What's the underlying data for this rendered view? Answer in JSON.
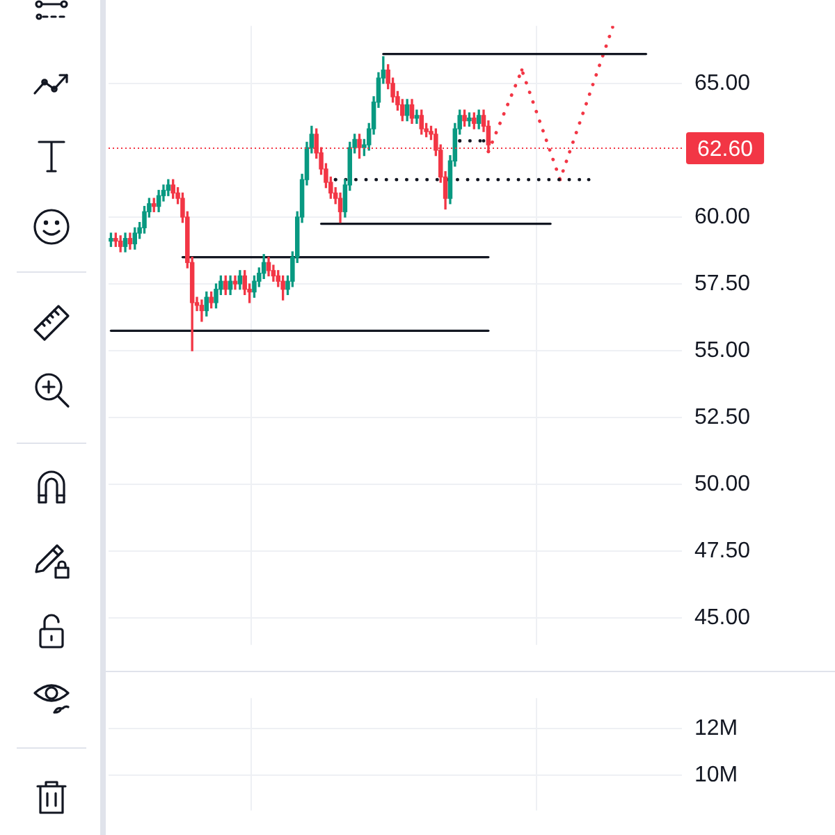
{
  "chart_data": [
    {
      "type": "candlestick",
      "categories": [
        null,
        null,
        null,
        null,
        null,
        null,
        null,
        null,
        null,
        null,
        null,
        null,
        null,
        null,
        null,
        null,
        null,
        null,
        null,
        null,
        null,
        null,
        null,
        null,
        null,
        null,
        null,
        null,
        null,
        null,
        null,
        null,
        null,
        null,
        null,
        null,
        null,
        null,
        null,
        null,
        null,
        null,
        null,
        null,
        null,
        null,
        null,
        null,
        null,
        null,
        null,
        null,
        null,
        null,
        null,
        null,
        null,
        null,
        null,
        null,
        null,
        null,
        null,
        null,
        null,
        null,
        null,
        null,
        null,
        null,
        null,
        null,
        null,
        null,
        null,
        null,
        null,
        null,
        null,
        null,
        null,
        null,
        null,
        null,
        null,
        null,
        null,
        null,
        null,
        null,
        null,
        null,
        null,
        null,
        null,
        null,
        null,
        null,
        null,
        null,
        null,
        null,
        null,
        null,
        null,
        null,
        null,
        null,
        null,
        null,
        null,
        null,
        null,
        null,
        null,
        null,
        null,
        null,
        null,
        null
      ],
      "ohlc": [
        [
          59.1,
          59.4,
          58.9,
          59.2
        ],
        [
          59.2,
          59.4,
          58.9,
          59.1
        ],
        [
          59.1,
          59.3,
          58.7,
          58.9
        ],
        [
          58.9,
          59.4,
          58.7,
          59.2
        ],
        [
          59.2,
          59.4,
          58.8,
          59.0
        ],
        [
          59.0,
          59.6,
          58.8,
          59.4
        ],
        [
          59.4,
          59.8,
          59.2,
          59.6
        ],
        [
          59.6,
          60.4,
          59.4,
          60.2
        ],
        [
          60.2,
          60.7,
          60.0,
          60.5
        ],
        [
          60.5,
          60.7,
          60.2,
          60.4
        ],
        [
          60.4,
          61.0,
          60.2,
          60.8
        ],
        [
          60.8,
          61.2,
          60.6,
          61.0
        ],
        [
          61.0,
          61.4,
          60.8,
          61.2
        ],
        [
          61.2,
          61.4,
          60.7,
          60.9
        ],
        [
          60.9,
          61.1,
          60.5,
          60.7
        ],
        [
          60.7,
          60.9,
          59.8,
          60.0
        ],
        [
          60.0,
          60.2,
          58.1,
          58.3
        ],
        [
          58.3,
          58.5,
          55.0,
          56.8
        ],
        [
          56.8,
          57.0,
          56.5,
          56.7
        ],
        [
          56.7,
          56.9,
          56.1,
          56.5
        ],
        [
          56.5,
          57.2,
          56.3,
          57.0
        ],
        [
          57.0,
          57.2,
          56.6,
          56.8
        ],
        [
          56.8,
          57.5,
          56.6,
          57.3
        ],
        [
          57.3,
          57.8,
          57.1,
          57.6
        ],
        [
          57.6,
          57.8,
          57.1,
          57.3
        ],
        [
          57.3,
          57.8,
          57.1,
          57.6
        ],
        [
          57.6,
          57.8,
          57.3,
          57.5
        ],
        [
          57.5,
          58.0,
          57.3,
          57.8
        ],
        [
          57.8,
          58.0,
          57.1,
          57.3
        ],
        [
          57.3,
          57.5,
          56.8,
          57.2
        ],
        [
          57.2,
          57.8,
          57.0,
          57.6
        ],
        [
          57.6,
          58.1,
          57.4,
          57.9
        ],
        [
          57.9,
          58.6,
          57.7,
          58.3
        ],
        [
          58.3,
          58.5,
          57.8,
          58.0
        ],
        [
          58.0,
          58.2,
          57.6,
          57.8
        ],
        [
          57.8,
          58.0,
          57.4,
          57.6
        ],
        [
          57.6,
          57.8,
          56.9,
          57.3
        ],
        [
          57.3,
          57.8,
          57.1,
          57.6
        ],
        [
          57.6,
          58.7,
          57.4,
          58.5
        ],
        [
          58.5,
          60.2,
          58.3,
          60.0
        ],
        [
          60.0,
          61.6,
          59.8,
          61.4
        ],
        [
          61.4,
          62.8,
          61.2,
          62.6
        ],
        [
          62.6,
          63.4,
          62.4,
          63.1
        ],
        [
          63.1,
          63.3,
          62.2,
          62.4
        ],
        [
          62.4,
          62.6,
          61.6,
          61.8
        ],
        [
          61.8,
          62.0,
          61.1,
          61.3
        ],
        [
          61.3,
          61.5,
          60.7,
          60.9
        ],
        [
          60.9,
          61.1,
          60.5,
          60.7
        ],
        [
          60.7,
          60.9,
          59.8,
          60.2
        ],
        [
          60.2,
          61.4,
          60.0,
          61.2
        ],
        [
          61.2,
          62.8,
          61.0,
          62.6
        ],
        [
          62.6,
          63.1,
          62.4,
          62.9
        ],
        [
          62.9,
          63.1,
          62.2,
          62.6
        ],
        [
          62.6,
          62.9,
          62.3,
          62.7
        ],
        [
          62.7,
          63.5,
          62.5,
          63.3
        ],
        [
          63.3,
          64.5,
          63.1,
          64.3
        ],
        [
          64.3,
          65.4,
          64.1,
          65.2
        ],
        [
          65.2,
          66.0,
          65.0,
          65.5
        ],
        [
          65.5,
          65.7,
          64.8,
          65.0
        ],
        [
          65.0,
          65.2,
          64.3,
          64.5
        ],
        [
          64.5,
          64.7,
          64.0,
          64.2
        ],
        [
          64.2,
          64.4,
          63.6,
          63.8
        ],
        [
          63.8,
          64.4,
          63.6,
          64.2
        ],
        [
          64.2,
          64.4,
          63.5,
          63.7
        ],
        [
          63.7,
          64.0,
          63.5,
          63.8
        ],
        [
          63.8,
          64.0,
          63.1,
          63.3
        ],
        [
          63.3,
          63.5,
          63.0,
          63.2
        ],
        [
          63.2,
          63.4,
          62.9,
          63.1
        ],
        [
          63.1,
          63.3,
          62.3,
          62.5
        ],
        [
          62.5,
          62.7,
          61.3,
          61.5
        ],
        [
          61.5,
          61.7,
          60.3,
          60.7
        ],
        [
          60.7,
          62.3,
          60.5,
          62.1
        ],
        [
          62.1,
          63.5,
          61.9,
          63.3
        ],
        [
          63.3,
          64.0,
          63.1,
          63.8
        ],
        [
          63.8,
          64.0,
          63.4,
          63.6
        ],
        [
          63.6,
          63.9,
          63.4,
          63.7
        ],
        [
          63.7,
          63.9,
          63.3,
          63.5
        ],
        [
          63.5,
          64.0,
          63.3,
          63.8
        ],
        [
          63.8,
          64.0,
          63.2,
          63.4
        ],
        [
          63.4,
          63.6,
          62.5,
          62.7
        ],
        null,
        null,
        null,
        null,
        null,
        null,
        null,
        null,
        null,
        null,
        null,
        null,
        null,
        null,
        null,
        null,
        null,
        null,
        null,
        null,
        null,
        null,
        null,
        null,
        null,
        null,
        null,
        null,
        null,
        null,
        null,
        null,
        null,
        null,
        null,
        null,
        null,
        null,
        null,
        null
      ],
      "series": [
        {
          "type": "line",
          "color": "#131722",
          "line_style": "solid",
          "values": [
            null,
            null,
            null,
            null,
            null,
            null,
            null,
            null,
            null,
            null,
            null,
            null,
            null,
            null,
            null,
            null,
            null,
            null,
            null,
            null,
            null,
            null,
            null,
            null,
            null,
            null,
            null,
            null,
            null,
            null,
            null,
            null,
            null,
            null,
            null,
            null,
            null,
            null,
            null,
            null,
            null,
            null,
            null,
            null,
            null,
            null,
            null,
            null,
            null,
            null,
            null,
            null,
            null,
            null,
            null,
            null,
            null,
            66.1,
            null,
            null,
            null,
            null,
            null,
            null,
            null,
            null,
            null,
            null,
            null,
            null,
            null,
            null,
            null,
            null,
            null,
            null,
            null,
            null,
            null,
            null,
            null,
            null,
            null,
            null,
            null,
            null,
            null,
            null,
            null,
            null,
            null,
            null,
            null,
            null,
            null,
            null,
            null,
            null,
            null,
            null,
            null,
            null,
            null,
            null,
            null,
            null,
            null,
            null,
            null,
            null,
            null,
            null,
            66.1,
            null,
            null,
            null,
            null,
            null,
            null,
            null
          ]
        },
        {
          "type": "line",
          "color": "#131722",
          "line_style": "solid",
          "values": [
            null,
            null,
            null,
            null,
            null,
            null,
            null,
            null,
            null,
            null,
            null,
            null,
            null,
            null,
            null,
            null,
            null,
            null,
            null,
            null,
            null,
            null,
            null,
            null,
            null,
            null,
            null,
            null,
            null,
            null,
            null,
            null,
            null,
            null,
            null,
            null,
            null,
            null,
            null,
            null,
            null,
            null,
            null,
            null,
            59.75,
            null,
            null,
            null,
            null,
            null,
            null,
            null,
            null,
            null,
            null,
            null,
            null,
            null,
            null,
            null,
            null,
            null,
            null,
            null,
            null,
            null,
            null,
            null,
            null,
            null,
            null,
            null,
            null,
            null,
            null,
            null,
            null,
            null,
            null,
            null,
            null,
            null,
            null,
            null,
            null,
            null,
            null,
            null,
            null,
            null,
            null,
            null,
            59.75,
            null,
            null,
            null,
            null,
            null,
            null,
            null,
            null,
            null,
            null,
            null,
            null,
            null,
            null,
            null,
            null,
            null,
            null,
            null,
            null,
            null,
            null,
            null,
            null,
            null,
            null,
            null
          ]
        },
        {
          "type": "line",
          "color": "#131722",
          "line_style": "solid",
          "values": [
            null,
            null,
            null,
            null,
            null,
            null,
            null,
            null,
            null,
            null,
            null,
            null,
            null,
            null,
            null,
            58.5,
            null,
            null,
            null,
            null,
            null,
            null,
            null,
            null,
            null,
            null,
            null,
            null,
            null,
            null,
            null,
            null,
            null,
            null,
            null,
            null,
            null,
            null,
            null,
            null,
            null,
            null,
            null,
            null,
            null,
            null,
            null,
            null,
            null,
            null,
            null,
            null,
            null,
            null,
            null,
            null,
            null,
            null,
            null,
            null,
            null,
            null,
            null,
            null,
            null,
            null,
            null,
            null,
            null,
            null,
            null,
            null,
            null,
            null,
            null,
            null,
            null,
            null,
            null,
            58.5,
            null,
            null,
            null,
            null,
            null,
            null,
            null,
            null,
            null,
            null,
            null,
            null,
            null,
            null,
            null,
            null,
            null,
            null,
            null,
            null,
            null,
            null,
            null,
            null,
            null,
            null,
            null,
            null,
            null,
            null,
            null,
            null,
            null,
            null,
            null,
            null,
            null,
            null,
            null,
            null
          ]
        },
        {
          "type": "line",
          "color": "#131722",
          "line_style": "solid",
          "values": [
            55.75,
            null,
            null,
            null,
            null,
            null,
            null,
            null,
            null,
            null,
            null,
            null,
            null,
            null,
            null,
            null,
            null,
            null,
            null,
            null,
            null,
            null,
            null,
            null,
            null,
            null,
            null,
            null,
            null,
            null,
            null,
            null,
            null,
            null,
            null,
            null,
            null,
            null,
            null,
            null,
            null,
            null,
            null,
            null,
            null,
            null,
            null,
            null,
            null,
            null,
            null,
            null,
            null,
            null,
            null,
            null,
            null,
            null,
            null,
            null,
            null,
            null,
            null,
            null,
            null,
            null,
            null,
            null,
            null,
            null,
            null,
            null,
            null,
            null,
            null,
            null,
            null,
            null,
            null,
            55.75,
            null,
            null,
            null,
            null,
            null,
            null,
            null,
            null,
            null,
            null,
            null,
            null,
            null,
            null,
            null,
            null,
            null,
            null,
            null,
            null,
            null,
            null,
            null,
            null,
            null,
            null,
            null,
            null,
            null,
            null,
            null,
            null,
            null,
            null,
            null,
            null,
            null,
            null,
            null,
            null
          ]
        },
        {
          "type": "line",
          "color": "#131722",
          "line_style": "dotted",
          "values": [
            null,
            null,
            null,
            null,
            null,
            null,
            null,
            null,
            null,
            null,
            null,
            null,
            null,
            null,
            null,
            null,
            null,
            null,
            null,
            null,
            null,
            null,
            null,
            null,
            null,
            null,
            null,
            null,
            null,
            null,
            null,
            null,
            null,
            null,
            null,
            null,
            null,
            null,
            null,
            null,
            null,
            null,
            null,
            null,
            null,
            null,
            null,
            61.4,
            null,
            null,
            null,
            null,
            null,
            null,
            null,
            null,
            null,
            null,
            null,
            null,
            null,
            null,
            null,
            null,
            null,
            null,
            null,
            null,
            null,
            null,
            null,
            null,
            null,
            null,
            null,
            null,
            null,
            null,
            null,
            null,
            null,
            null,
            null,
            null,
            null,
            null,
            null,
            null,
            null,
            null,
            null,
            null,
            null,
            null,
            null,
            null,
            null,
            null,
            null,
            null,
            61.4,
            null,
            null,
            null,
            null,
            null,
            null,
            null,
            null,
            null,
            null,
            null,
            null,
            null,
            null,
            null,
            null,
            null,
            null,
            null
          ]
        },
        {
          "type": "line",
          "color": "#131722",
          "line_style": "dotted",
          "values": [
            null,
            null,
            null,
            null,
            null,
            null,
            null,
            null,
            null,
            null,
            null,
            null,
            null,
            null,
            null,
            null,
            null,
            null,
            null,
            null,
            null,
            null,
            null,
            null,
            null,
            null,
            null,
            null,
            null,
            null,
            null,
            null,
            null,
            null,
            null,
            null,
            null,
            null,
            null,
            null,
            null,
            null,
            null,
            null,
            null,
            null,
            null,
            null,
            null,
            null,
            null,
            null,
            null,
            null,
            null,
            null,
            null,
            null,
            null,
            null,
            null,
            null,
            null,
            null,
            null,
            null,
            null,
            null,
            null,
            null,
            null,
            null,
            null,
            62.85,
            null,
            null,
            null,
            null,
            62.85,
            null,
            null,
            null,
            null,
            null,
            null,
            null,
            null,
            null,
            null,
            null,
            null,
            null,
            null,
            null,
            null,
            null,
            null,
            null,
            null,
            null,
            null,
            null,
            null,
            null,
            null,
            null,
            null,
            null,
            null,
            null,
            null,
            null,
            null,
            null,
            null,
            null,
            null,
            null,
            null,
            null
          ]
        },
        {
          "type": "line",
          "color": "#f23645",
          "line_style": "dotted",
          "values": [
            null,
            null,
            null,
            null,
            null,
            null,
            null,
            null,
            null,
            null,
            null,
            null,
            null,
            null,
            null,
            null,
            null,
            null,
            null,
            null,
            null,
            null,
            null,
            null,
            null,
            null,
            null,
            null,
            null,
            null,
            null,
            null,
            null,
            null,
            null,
            null,
            null,
            null,
            null,
            null,
            null,
            null,
            null,
            null,
            null,
            null,
            null,
            null,
            null,
            null,
            null,
            null,
            null,
            null,
            null,
            null,
            null,
            null,
            null,
            null,
            null,
            null,
            null,
            null,
            null,
            null,
            null,
            null,
            null,
            null,
            null,
            null,
            null,
            null,
            null,
            null,
            null,
            null,
            null,
            62.45,
            null,
            null,
            null,
            null,
            null,
            null,
            65.5,
            null,
            null,
            null,
            null,
            null,
            null,
            null,
            61.4,
            null,
            null,
            null,
            null,
            null,
            null,
            null,
            null,
            null,
            null,
            67.1,
            null,
            null,
            null,
            null,
            null,
            null,
            null,
            null,
            null,
            null,
            null,
            null,
            null,
            null
          ]
        }
      ],
      "ref_lines": [
        {
          "axis": "y",
          "value": 62.6,
          "label": "62.60",
          "color": "#f23645",
          "line_style": "dotted"
        }
      ],
      "ylim": [
        44,
        67.15
      ],
      "yticks": [
        {
          "value": 45,
          "label": "45.00"
        },
        {
          "value": 47.5,
          "label": "47.50"
        },
        {
          "value": 50,
          "label": "50.00"
        },
        {
          "value": 52.5,
          "label": "52.50"
        },
        {
          "value": 55,
          "label": "55.00"
        },
        {
          "value": 57.5,
          "label": "57.50"
        },
        {
          "value": 60,
          "label": "60.00"
        },
        {
          "value": 65,
          "label": "65.00"
        }
      ],
      "grid": true
    },
    {
      "type": "bar",
      "categories": [
        null
      ],
      "values": [
        null
      ],
      "ylim": [
        8460000,
        13330000
      ],
      "yticks": [
        {
          "value": 10000000,
          "label": "10M"
        },
        {
          "value": 12000000,
          "label": "12M"
        }
      ],
      "grid": true
    }
  ]
}
